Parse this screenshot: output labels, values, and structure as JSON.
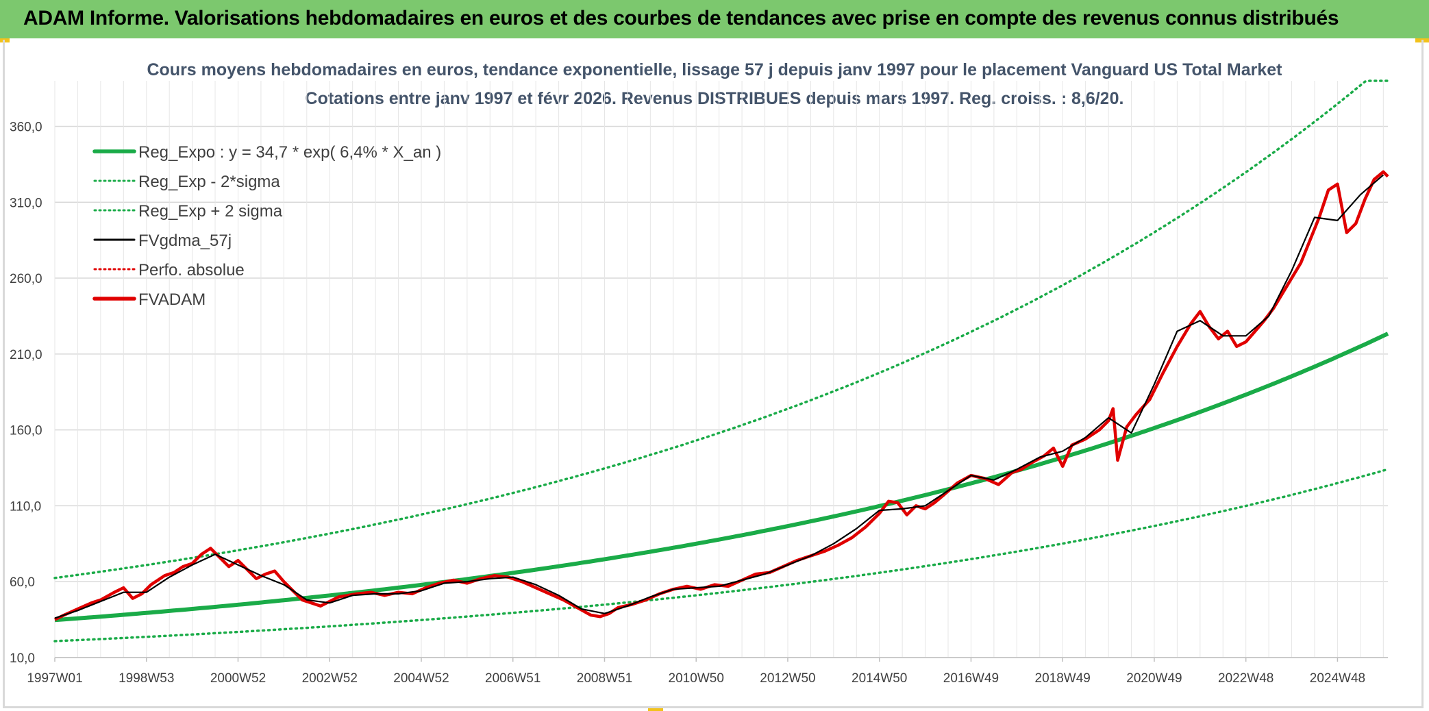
{
  "header": {
    "title": "ADAM Informe. Valorisations hebdomadaires en euros et des courbes de tendances avec prise en compte des revenus connus distribués",
    "background_color": "#7cc86e"
  },
  "chart_data": {
    "type": "line",
    "title_line1": "Cours moyens hebdomadaires en euros, tendance exponentielle, lissage 57 j depuis janv 1997 pour le placement Vanguard US Total Market",
    "title_line2": "Cotations entre janv 1997 et févr 2026. Revenus DISTRIBUES depuis mars 1997. Reg. croiss. : 8,6/20.",
    "xlabel": "",
    "ylabel": "",
    "ylim": [
      10,
      390
    ],
    "xlim": [
      1997.0,
      2026.1
    ],
    "yticks": [
      "360,0",
      "310,0",
      "260,0",
      "210,0",
      "160,0",
      "110,0",
      "60,0",
      "10,0"
    ],
    "ytick_values": [
      360,
      310,
      260,
      210,
      160,
      110,
      60,
      10
    ],
    "xticks": [
      "1997W01",
      "1998W53",
      "2000W52",
      "2002W52",
      "2004W52",
      "2006W51",
      "2008W51",
      "2010W50",
      "2012W50",
      "2014W50",
      "2016W49",
      "2018W49",
      "2020W49",
      "2022W48",
      "2024W48"
    ],
    "xtick_years": [
      1997.0,
      1999.0,
      2001.0,
      2003.0,
      2005.0,
      2007.0,
      2009.0,
      2011.0,
      2013.0,
      2015.0,
      2017.0,
      2019.0,
      2021.0,
      2023.0,
      2025.0
    ],
    "grid": true,
    "legend_position": "top-left",
    "legend": [
      {
        "label": "Reg_Expo : y = 34,7 * exp( 6,4% *  X_an )",
        "color": "#1aab48",
        "style": "solid-thick"
      },
      {
        "label": "Reg_Exp - 2*sigma",
        "color": "#1aab48",
        "style": "dotted"
      },
      {
        "label": "Reg_Exp + 2 sigma",
        "color": "#1aab48",
        "style": "dotted"
      },
      {
        "label": "FVgdma_57j",
        "color": "#000000",
        "style": "solid"
      },
      {
        "label": "Perfo. absolue",
        "color": "#e00000",
        "style": "dotted"
      },
      {
        "label": "FVADAM",
        "color": "#e00000",
        "style": "solid-thick"
      }
    ],
    "trend": {
      "a": 34.7,
      "rate": 0.064,
      "start_year": 1997.0,
      "minus_2sigma_factor": 0.6,
      "plus_2sigma_factor": 1.8
    },
    "series": [
      {
        "name": "FVADAM",
        "color": "#e00000",
        "x": [
          1997.0,
          1997.2,
          1997.5,
          1997.8,
          1998.0,
          1998.3,
          1998.5,
          1998.7,
          1998.9,
          1999.1,
          1999.4,
          1999.6,
          1999.8,
          2000.0,
          2000.2,
          2000.4,
          2000.6,
          2000.8,
          2001.0,
          2001.2,
          2001.4,
          2001.6,
          2001.8,
          2002.0,
          2002.2,
          2002.4,
          2002.6,
          2002.8,
          2003.0,
          2003.2,
          2003.4,
          2003.6,
          2003.9,
          2004.2,
          2004.5,
          2004.8,
          2005.1,
          2005.4,
          2005.7,
          2006.0,
          2006.3,
          2006.6,
          2006.9,
          2007.2,
          2007.5,
          2007.8,
          2008.1,
          2008.4,
          2008.7,
          2008.9,
          2009.1,
          2009.3,
          2009.6,
          2009.9,
          2010.2,
          2010.5,
          2010.8,
          2011.1,
          2011.4,
          2011.7,
          2012.0,
          2012.3,
          2012.6,
          2012.9,
          2013.2,
          2013.5,
          2013.8,
          2014.1,
          2014.4,
          2014.7,
          2015.0,
          2015.2,
          2015.4,
          2015.6,
          2015.8,
          2016.0,
          2016.2,
          2016.4,
          2016.7,
          2017.0,
          2017.3,
          2017.6,
          2017.9,
          2018.1,
          2018.3,
          2018.6,
          2018.8,
          2019.0,
          2019.2,
          2019.5,
          2019.8,
          2020.0,
          2020.1,
          2020.2,
          2020.4,
          2020.6,
          2020.9,
          2021.2,
          2021.5,
          2021.8,
          2022.0,
          2022.2,
          2022.4,
          2022.6,
          2022.8,
          2023.0,
          2023.2,
          2023.4,
          2023.6,
          2023.9,
          2024.2,
          2024.4,
          2024.6,
          2024.8,
          2025.0,
          2025.2,
          2025.4,
          2025.6,
          2025.8,
          2026.0,
          2026.1
        ],
        "y": [
          35,
          38,
          42,
          46,
          48,
          53,
          56,
          49,
          52,
          58,
          64,
          66,
          70,
          72,
          78,
          82,
          76,
          70,
          74,
          68,
          62,
          65,
          67,
          60,
          54,
          48,
          46,
          44,
          47,
          50,
          51,
          52,
          53,
          51,
          53,
          52,
          56,
          59,
          61,
          59,
          62,
          64,
          63,
          60,
          56,
          52,
          48,
          43,
          38,
          37,
          39,
          43,
          45,
          48,
          52,
          55,
          57,
          55,
          58,
          57,
          61,
          65,
          66,
          70,
          74,
          77,
          80,
          84,
          89,
          96,
          105,
          113,
          112,
          104,
          110,
          108,
          112,
          117,
          125,
          130,
          128,
          124,
          132,
          134,
          138,
          143,
          148,
          136,
          150,
          154,
          160,
          166,
          174,
          140,
          162,
          170,
          180,
          198,
          215,
          230,
          238,
          228,
          220,
          225,
          215,
          218,
          225,
          232,
          240,
          255,
          270,
          285,
          300,
          318,
          322,
          290,
          296,
          312,
          325,
          330,
          327
        ]
      },
      {
        "name": "FVgdma_57j",
        "color": "#000000",
        "x": [
          1997.0,
          1997.5,
          1998.0,
          1998.5,
          1999.0,
          1999.5,
          2000.0,
          2000.5,
          2001.0,
          2001.5,
          2002.0,
          2002.5,
          2003.0,
          2003.5,
          2004.0,
          2004.5,
          2005.0,
          2005.5,
          2006.0,
          2006.5,
          2007.0,
          2007.5,
          2008.0,
          2008.5,
          2009.0,
          2009.5,
          2010.0,
          2010.5,
          2011.0,
          2011.5,
          2012.0,
          2012.5,
          2013.0,
          2013.5,
          2014.0,
          2014.5,
          2015.0,
          2015.5,
          2016.0,
          2016.5,
          2017.0,
          2017.5,
          2018.0,
          2018.5,
          2019.0,
          2019.5,
          2020.0,
          2020.5,
          2021.0,
          2021.5,
          2022.0,
          2022.5,
          2023.0,
          2023.5,
          2024.0,
          2024.5,
          2025.0,
          2025.5,
          2026.0
        ],
        "y": [
          36,
          41,
          47,
          53,
          53,
          63,
          71,
          78,
          71,
          64,
          58,
          48,
          46,
          51,
          52,
          52,
          54,
          59,
          60,
          62,
          63,
          58,
          51,
          42,
          39,
          44,
          50,
          55,
          56,
          57,
          61,
          65,
          71,
          77,
          85,
          95,
          107,
          108,
          110,
          120,
          130,
          127,
          134,
          142,
          146,
          155,
          168,
          158,
          190,
          225,
          232,
          222,
          222,
          235,
          265,
          300,
          298,
          315,
          328
        ]
      }
    ]
  }
}
